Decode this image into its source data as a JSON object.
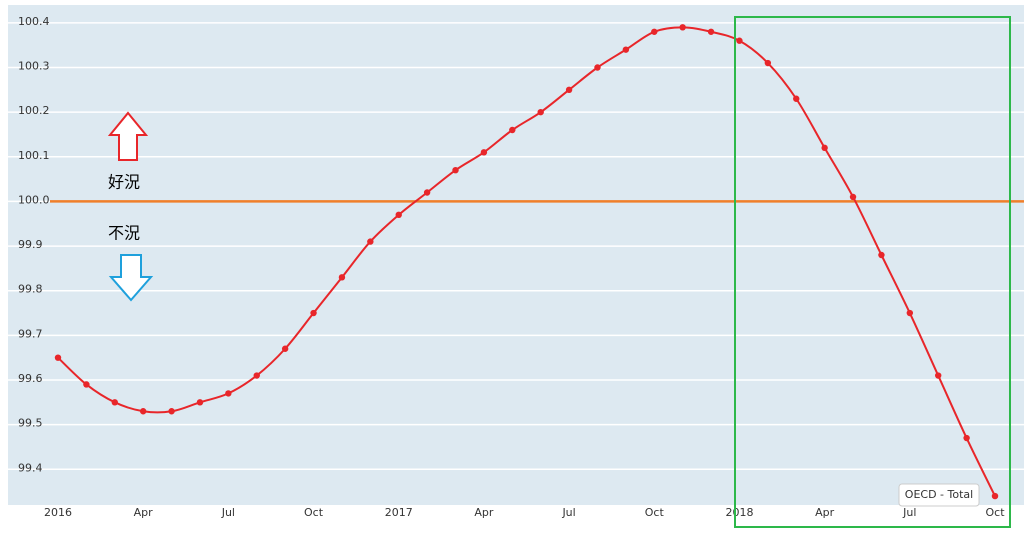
{
  "chart_data": {
    "type": "line",
    "categories": [
      "2016",
      null,
      null,
      "Apr",
      null,
      null,
      "Jul",
      null,
      null,
      "Oct",
      null,
      null,
      "2017",
      null,
      null,
      "Apr",
      null,
      null,
      "Jul",
      null,
      null,
      "Oct",
      null,
      null,
      "2018",
      null,
      null,
      "Apr",
      null,
      null,
      "Jul",
      null,
      null,
      "Oct"
    ],
    "series": [
      {
        "name": "OECD - Total",
        "color": "#e8262a",
        "values": [
          99.65,
          99.59,
          99.55,
          99.53,
          99.53,
          99.55,
          99.57,
          99.61,
          99.67,
          99.75,
          99.83,
          99.91,
          99.97,
          100.02,
          100.07,
          100.11,
          100.16,
          100.2,
          100.25,
          100.3,
          100.34,
          100.38,
          100.39,
          100.38,
          100.36,
          100.31,
          100.23,
          100.12,
          100.01,
          99.88,
          99.75,
          99.61,
          99.47,
          99.34
        ]
      }
    ],
    "ylim": [
      99.32,
      100.44
    ],
    "yticks": [
      99.4,
      99.5,
      99.6,
      99.7,
      99.8,
      99.9,
      {
        "value": 100,
        "label": "100.0"
      },
      100.1,
      100.2,
      100.3,
      100.4
    ],
    "grid": true,
    "reference_line": {
      "value": 100,
      "color": "#f07f2a"
    },
    "annotations": [
      "好況",
      "不況"
    ]
  }
}
